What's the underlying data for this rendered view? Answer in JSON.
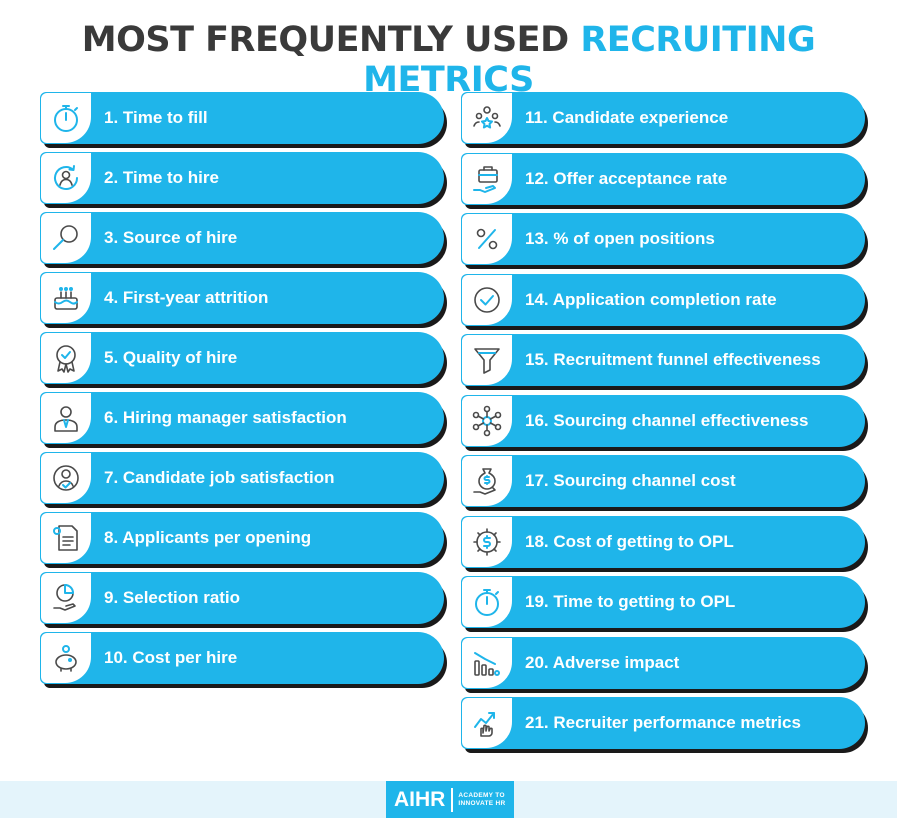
{
  "title": {
    "part1": "MOST FREQUENTLY USED ",
    "part2": "RECRUITING METRICS"
  },
  "colors": {
    "accent": "#1fb5ea",
    "dark": "#3a3a3a",
    "shadow": "#1a1a1a",
    "footer_band": "#e4f4fb"
  },
  "left_items": [
    {
      "label": "1. Time to fill",
      "icon": "stopwatch-icon"
    },
    {
      "label": "2. Time to hire",
      "icon": "person-cycle-icon"
    },
    {
      "label": "3. Source of hire",
      "icon": "magnifier-icon"
    },
    {
      "label": "4. First-year attrition",
      "icon": "birthday-cake-icon"
    },
    {
      "label": "5. Quality of hire",
      "icon": "award-ribbon-icon"
    },
    {
      "label": "6. Hiring manager satisfaction",
      "icon": "manager-icon"
    },
    {
      "label": "7. Candidate job satisfaction",
      "icon": "user-check-icon"
    },
    {
      "label": "8. Applicants per opening",
      "icon": "resume-document-icon"
    },
    {
      "label": "9. Selection ratio",
      "icon": "pie-hand-icon"
    },
    {
      "label": "10. Cost per hire",
      "icon": "piggy-bank-icon"
    }
  ],
  "right_items": [
    {
      "label": "11. Candidate experience",
      "icon": "people-stars-icon"
    },
    {
      "label": "12. Offer acceptance rate",
      "icon": "briefcase-hand-icon"
    },
    {
      "label": "13. % of open positions",
      "icon": "percent-icon"
    },
    {
      "label": "14. Application completion rate",
      "icon": "check-circle-icon"
    },
    {
      "label": "15. Recruitment funnel effectiveness",
      "icon": "funnel-icon"
    },
    {
      "label": "16. Sourcing channel effectiveness",
      "icon": "network-icon"
    },
    {
      "label": "17. Sourcing channel cost",
      "icon": "money-bag-hand-icon"
    },
    {
      "label": "18. Cost of getting to OPL",
      "icon": "dollar-gear-icon"
    },
    {
      "label": "19. Time to getting to OPL",
      "icon": "stopwatch-icon"
    },
    {
      "label": "20. Adverse impact",
      "icon": "declining-bars-icon"
    },
    {
      "label": "21. Recruiter performance metrics",
      "icon": "trend-hand-icon"
    }
  ],
  "logo": {
    "mark": "AIHR",
    "line1": "ACADEMY TO",
    "line2": "INNOVATE HR"
  }
}
